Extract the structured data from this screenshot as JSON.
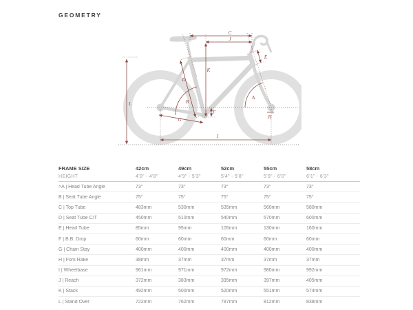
{
  "page": {
    "title": "GEOMETRY"
  },
  "diagram": {
    "labels": {
      "A": "A",
      "B": "B",
      "C": "C",
      "D": "D",
      "E": "E",
      "F": "F",
      "G": "G",
      "H": "H",
      "I": "I",
      "J": "J",
      "K": "K",
      "L": "L"
    },
    "colors": {
      "dimension_line": "#8a4a45",
      "bike_silhouette": "#d7d7d7",
      "guide_dots": "#6e6e6e"
    }
  },
  "table": {
    "header": {
      "label": "FRAME SIZE",
      "sizes": [
        "42cm",
        "49cm",
        "52cm",
        "55cm",
        "58cm"
      ]
    },
    "height_row": {
      "label": "HEIGHT",
      "values": [
        "4'0\" - 4'8\"",
        "4'9\" - 5'3\"",
        "5'4\" - 5'8\"",
        "5'9\" - 6'0\"",
        "6'1\" - 6'3\""
      ]
    },
    "rows": [
      {
        "label": ">A | Head Tube Angle",
        "values": [
          "73°",
          "73°",
          "73°",
          "73°",
          "73°"
        ]
      },
      {
        "label": "B | Seat Tube Angle",
        "values": [
          "75°",
          "75°",
          "75°",
          "75°",
          "75°"
        ]
      },
      {
        "label": "C | Top Tube",
        "values": [
          "483mm",
          "530mm",
          "535mm",
          "560mm",
          "580mm"
        ]
      },
      {
        "label": "D | Seat Tube C/T",
        "values": [
          "450mm",
          "510mm",
          "540mm",
          "570mm",
          "600mm"
        ]
      },
      {
        "label": "E | Head Tube",
        "values": [
          "85mm",
          "95mm",
          "105mm",
          "130mm",
          "160mm"
        ]
      },
      {
        "label": "F | B.B. Drop",
        "values": [
          "60mm",
          "60mm",
          "60mm",
          "60mm",
          "60mm"
        ]
      },
      {
        "label": "G | Chain Stay",
        "values": [
          "400mm",
          "400mm",
          "400mm",
          "400mm",
          "400mm"
        ]
      },
      {
        "label": "H | Fork Rake",
        "values": [
          "38mm",
          "37mm",
          "37mm",
          "37mm",
          "37mm"
        ]
      },
      {
        "label": "I | Wheelbase",
        "values": [
          "961mm",
          "971mm",
          "972mm",
          "980mm",
          "992mm"
        ]
      },
      {
        "label": "J | Reach",
        "values": [
          "372mm",
          "383mm",
          "395mm",
          "397mm",
          "405mm"
        ]
      },
      {
        "label": "K | Stack",
        "values": [
          "492mm",
          "500mm",
          "520mm",
          "551mm",
          "574mm"
        ]
      },
      {
        "label": "L | Stand Over",
        "values": [
          "722mm",
          "762mm",
          "787mm",
          "812mm",
          "838mm"
        ]
      }
    ]
  }
}
